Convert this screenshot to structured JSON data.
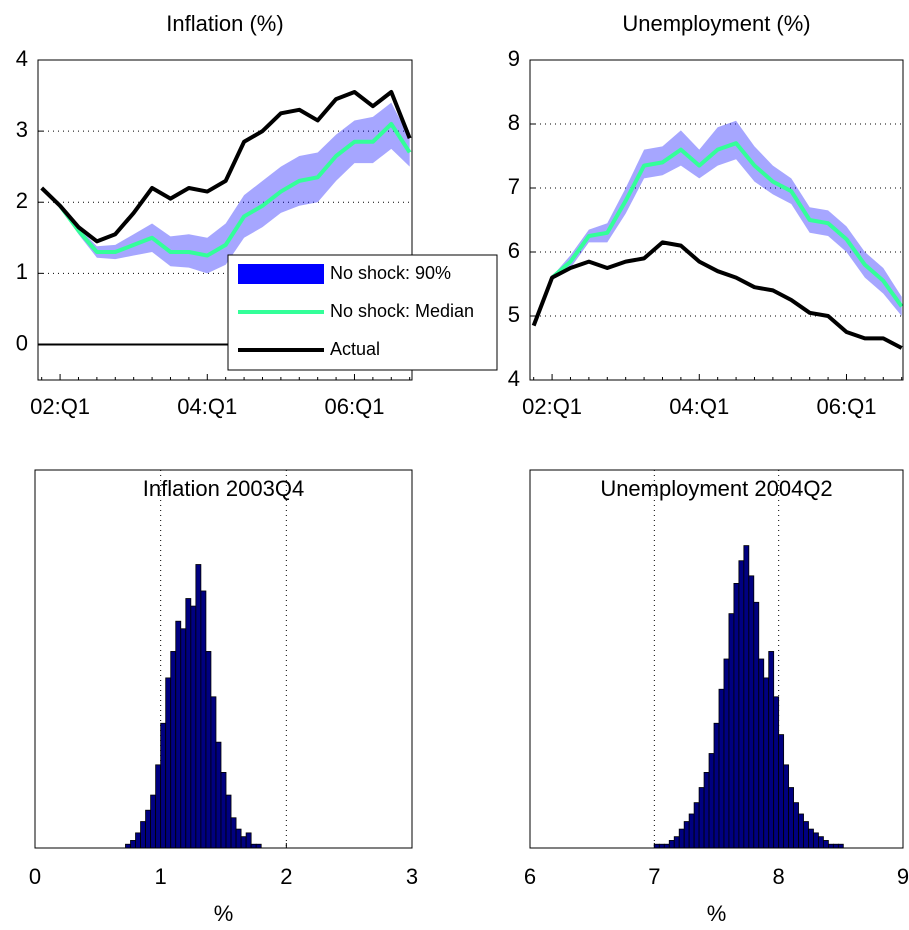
{
  "chart_data": [
    {
      "type": "line",
      "title": "Inflation (%)",
      "categories": [
        null,
        "02:Q1",
        null,
        null,
        null,
        null,
        null,
        null,
        null,
        "04:Q1",
        null,
        null,
        null,
        null,
        null,
        null,
        null,
        "06:Q1",
        null,
        null,
        null
      ],
      "series": [
        {
          "name": "No shock: 90%",
          "color": "#0000ff",
          "lower": [
            null,
            1.93,
            1.55,
            1.22,
            1.2,
            1.25,
            1.3,
            1.1,
            1.08,
            1.0,
            1.12,
            1.5,
            1.65,
            1.85,
            1.95,
            2.0,
            2.3,
            2.55,
            2.55,
            2.75,
            2.5
          ],
          "upper": [
            null,
            1.97,
            1.65,
            1.38,
            1.4,
            1.55,
            1.7,
            1.52,
            1.55,
            1.5,
            1.7,
            2.1,
            2.3,
            2.5,
            2.65,
            2.7,
            2.95,
            3.15,
            3.2,
            3.4,
            2.9
          ]
        },
        {
          "name": "No shock: Median",
          "color": "#33ff99",
          "values": [
            null,
            1.95,
            1.6,
            1.3,
            1.3,
            1.4,
            1.5,
            1.3,
            1.3,
            1.25,
            1.4,
            1.8,
            1.95,
            2.15,
            2.3,
            2.35,
            2.65,
            2.85,
            2.85,
            3.1,
            2.7
          ]
        },
        {
          "name": "Actual",
          "color": "#000000",
          "values": [
            2.2,
            1.95,
            1.65,
            1.45,
            1.55,
            1.85,
            2.2,
            2.05,
            2.2,
            2.15,
            2.3,
            2.85,
            3.0,
            3.25,
            3.3,
            3.15,
            3.45,
            3.55,
            3.35,
            3.55,
            2.9
          ]
        }
      ],
      "ylim": [
        -0.5,
        4
      ],
      "yticks": [
        0,
        1,
        2,
        3,
        4
      ],
      "grid": true,
      "zero_line": true,
      "legend": "lower right"
    },
    {
      "type": "line",
      "title": "Unemployment (%)",
      "categories": [
        null,
        "02:Q1",
        null,
        null,
        null,
        null,
        null,
        null,
        null,
        "04:Q1",
        null,
        null,
        null,
        null,
        null,
        null,
        null,
        "06:Q1",
        null,
        null,
        null
      ],
      "series": [
        {
          "name": "No shock: 90%",
          "color": "#0000ff",
          "lower": [
            null,
            5.58,
            5.75,
            6.15,
            6.15,
            6.6,
            7.15,
            7.2,
            7.35,
            7.15,
            7.35,
            7.45,
            7.1,
            6.9,
            6.75,
            6.3,
            6.25,
            6.0,
            5.6,
            5.35,
            5.0
          ],
          "upper": [
            null,
            5.62,
            5.95,
            6.35,
            6.45,
            7.0,
            7.6,
            7.65,
            7.9,
            7.6,
            7.95,
            8.05,
            7.65,
            7.35,
            7.15,
            6.7,
            6.65,
            6.4,
            6.0,
            5.75,
            5.3
          ]
        },
        {
          "name": "No shock: Median",
          "color": "#33ff99",
          "values": [
            null,
            5.6,
            5.85,
            6.25,
            6.3,
            6.8,
            7.35,
            7.4,
            7.6,
            7.35,
            7.6,
            7.7,
            7.35,
            7.1,
            6.95,
            6.5,
            6.45,
            6.2,
            5.8,
            5.55,
            5.15
          ]
        },
        {
          "name": "Actual",
          "color": "#000000",
          "values": [
            4.85,
            5.6,
            5.75,
            5.85,
            5.75,
            5.85,
            5.9,
            6.15,
            6.1,
            5.85,
            5.7,
            5.6,
            5.45,
            5.4,
            5.25,
            5.05,
            5.0,
            4.75,
            4.65,
            4.65,
            4.5
          ]
        }
      ],
      "ylim": [
        4,
        9
      ],
      "yticks": [
        4,
        5,
        6,
        7,
        8,
        9
      ],
      "grid": true
    },
    {
      "type": "histogram",
      "title": "Inflation 2003Q4",
      "xlabel": "%",
      "color": "#000080",
      "bins": [
        0.72,
        0.76,
        0.8,
        0.84,
        0.88,
        0.92,
        0.96,
        1,
        1.04,
        1.08,
        1.12,
        1.16,
        1.2,
        1.24,
        1.28,
        1.32,
        1.36,
        1.4,
        1.44,
        1.48,
        1.52,
        1.56,
        1.6,
        1.64,
        1.68,
        1.72,
        1.76,
        1.8
      ],
      "values": [
        1,
        2,
        4,
        7,
        10,
        14,
        22,
        33,
        45,
        52,
        60,
        58,
        66,
        64,
        75,
        68,
        52,
        40,
        28,
        20,
        14,
        8,
        5,
        3,
        4,
        1,
        1
      ],
      "xlim": [
        0,
        3
      ],
      "xticks": [
        0,
        1,
        2,
        3
      ],
      "ylim": [
        0,
        100
      ],
      "grid": true
    },
    {
      "type": "histogram",
      "title": "Unemployment 2004Q2",
      "xlabel": "%",
      "color": "#000080",
      "bins": [
        7,
        7.04,
        7.08,
        7.12,
        7.16,
        7.2,
        7.24,
        7.28,
        7.32,
        7.36,
        7.4,
        7.44,
        7.48,
        7.52,
        7.56,
        7.6,
        7.64,
        7.68,
        7.72,
        7.76,
        7.8,
        7.84,
        7.88,
        7.92,
        7.96,
        8,
        8.04,
        8.08,
        8.12,
        8.16,
        8.2,
        8.24,
        8.28,
        8.32,
        8.36,
        8.4,
        8.44,
        8.48,
        8.52
      ],
      "values": [
        1,
        1,
        1,
        2,
        3,
        5,
        7,
        9,
        12,
        16,
        20,
        25,
        33,
        42,
        50,
        62,
        70,
        76,
        80,
        72,
        65,
        50,
        45,
        52,
        40,
        30,
        22,
        16,
        12,
        9,
        7,
        5,
        4,
        3,
        2,
        1,
        1,
        1
      ],
      "xlim": [
        6,
        9
      ],
      "xticks": [
        6,
        7,
        8,
        9
      ],
      "ylim": [
        0,
        100
      ],
      "grid": true
    }
  ]
}
